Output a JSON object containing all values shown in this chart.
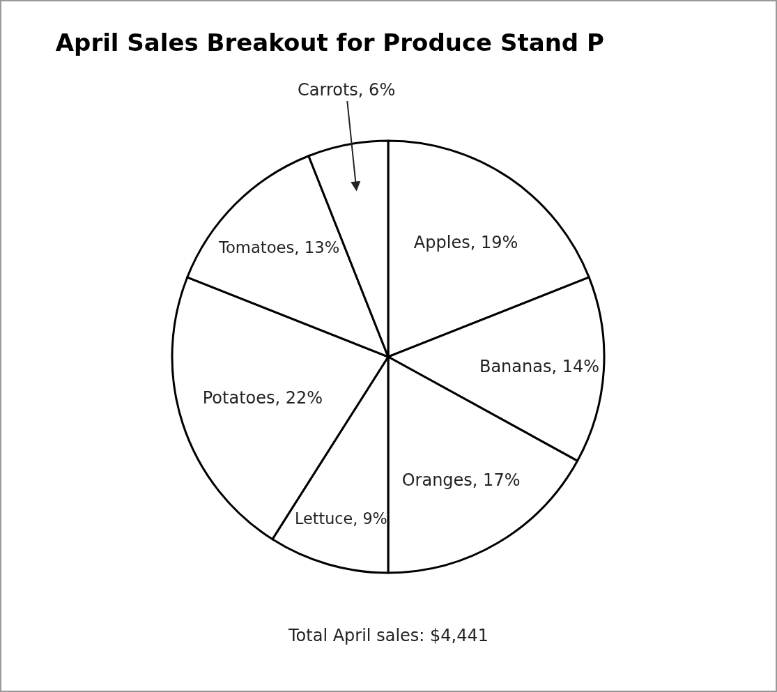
{
  "chart_data": {
    "type": "pie",
    "title": "April Sales Breakout for Produce Stand P",
    "categories": [
      "Apples",
      "Bananas",
      "Oranges",
      "Lettuce",
      "Potatoes",
      "Tomatoes",
      "Carrots"
    ],
    "values": [
      19,
      14,
      17,
      9,
      22,
      13,
      6
    ],
    "value_labels": [
      "19%",
      "14%",
      "17%",
      "9%",
      "22%",
      "13%",
      "6%"
    ],
    "colors": [
      "#ffffff",
      "#ffffff",
      "#ffffff",
      "#ffffff",
      "#ffffff",
      "#ffffff",
      "#ffffff"
    ],
    "legend": false,
    "annotations": [
      "Total April sales: $4,441"
    ]
  }
}
